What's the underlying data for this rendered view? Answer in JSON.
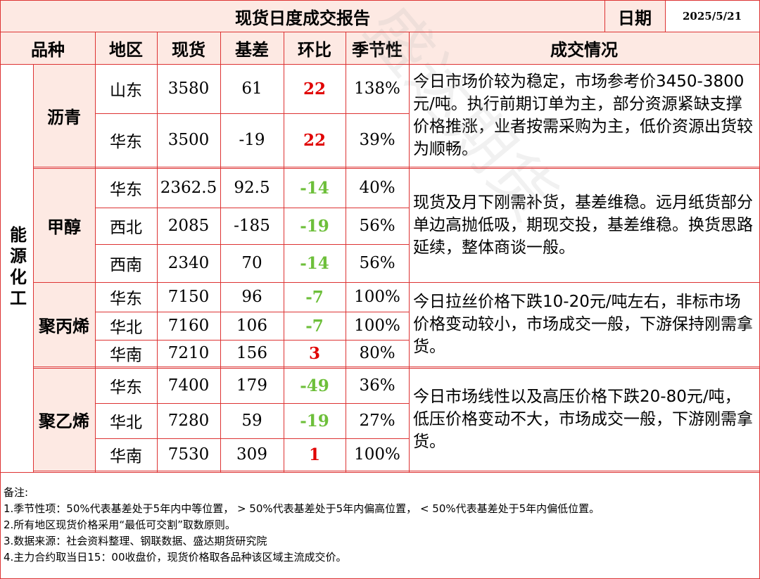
{
  "header": {
    "title": "现货日度成交报告",
    "date_label": "日期",
    "date_value": "2025/5/21"
  },
  "columns": [
    "品种",
    "地区",
    "现货",
    "基差",
    "环比",
    "季节性",
    "成交情况"
  ],
  "sector": "能源化工",
  "products": [
    {
      "name": "沥青",
      "info": "今日市场价较为稳定，市场参考价3450-3800元/吨。执行前期订单为主，部分资源紧缺支撑价格推涨，业者按需采购为主，低价资源出货较为顺畅。",
      "rows": [
        {
          "region": "山东",
          "spot": "3580",
          "basis": "61",
          "change": "22",
          "dir": "up",
          "seasonal": "138%"
        },
        {
          "region": "华东",
          "spot": "3500",
          "basis": "-19",
          "change": "22",
          "dir": "up",
          "seasonal": "39%"
        }
      ]
    },
    {
      "name": "甲醇",
      "info": "现货及月下刚需补货，基差维稳。远月纸货部分单边高抛低吸，期现交投，基差维稳。换货思路延续，整体商谈一般。",
      "rows": [
        {
          "region": "华东",
          "spot": "2362.5",
          "basis": "92.5",
          "change": "-14",
          "dir": "down",
          "seasonal": "40%"
        },
        {
          "region": "西北",
          "spot": "2085",
          "basis": "-185",
          "change": "-19",
          "dir": "down",
          "seasonal": "56%"
        },
        {
          "region": "西南",
          "spot": "2340",
          "basis": "70",
          "change": "-14",
          "dir": "down",
          "seasonal": "56%"
        }
      ]
    },
    {
      "name": "聚丙烯",
      "info": "今日拉丝价格下跌10-20元/吨左右，非标市场价格变动较小，市场成交一般，下游保持刚需拿货。",
      "rows": [
        {
          "region": "华东",
          "spot": "7150",
          "basis": "96",
          "change": "-7",
          "dir": "down",
          "seasonal": "100%"
        },
        {
          "region": "华北",
          "spot": "7160",
          "basis": "106",
          "change": "-7",
          "dir": "down",
          "seasonal": "100%"
        },
        {
          "region": "华南",
          "spot": "7210",
          "basis": "156",
          "change": "3",
          "dir": "up",
          "seasonal": "80%"
        }
      ]
    },
    {
      "name": "聚乙烯",
      "info": "今日市场线性以及高压价格下跌20-80元/吨，低压价格变动不大，市场成交一般，下游刚需拿货。",
      "rows": [
        {
          "region": "华东",
          "spot": "7400",
          "basis": "179",
          "change": "-49",
          "dir": "down",
          "seasonal": "36%"
        },
        {
          "region": "华北",
          "spot": "7280",
          "basis": "59",
          "change": "-19",
          "dir": "down",
          "seasonal": "27%"
        },
        {
          "region": "华南",
          "spot": "7530",
          "basis": "309",
          "change": "1",
          "dir": "up",
          "seasonal": "100%"
        }
      ]
    }
  ],
  "notes": [
    "备注:",
    "1.季节性项：50%代表基差处于5年内中等位置，  > 50%代表基差处于5年内偏高位置，  < 50%代表基差处于5年内偏低位置。",
    "2.所有地区现货价格采用“最低可交割”取数原则。",
    "3.数据来源：社会资料整理、钢联数据、盛达期货研究院",
    "4.主力合约取当日15：00收盘价，现货价格取各品种该区域主流成交价。"
  ],
  "colors": {
    "up": "#e00000",
    "down": "#6dbf3a",
    "header_bg": "#fde9e3",
    "grid": "#d33333"
  }
}
